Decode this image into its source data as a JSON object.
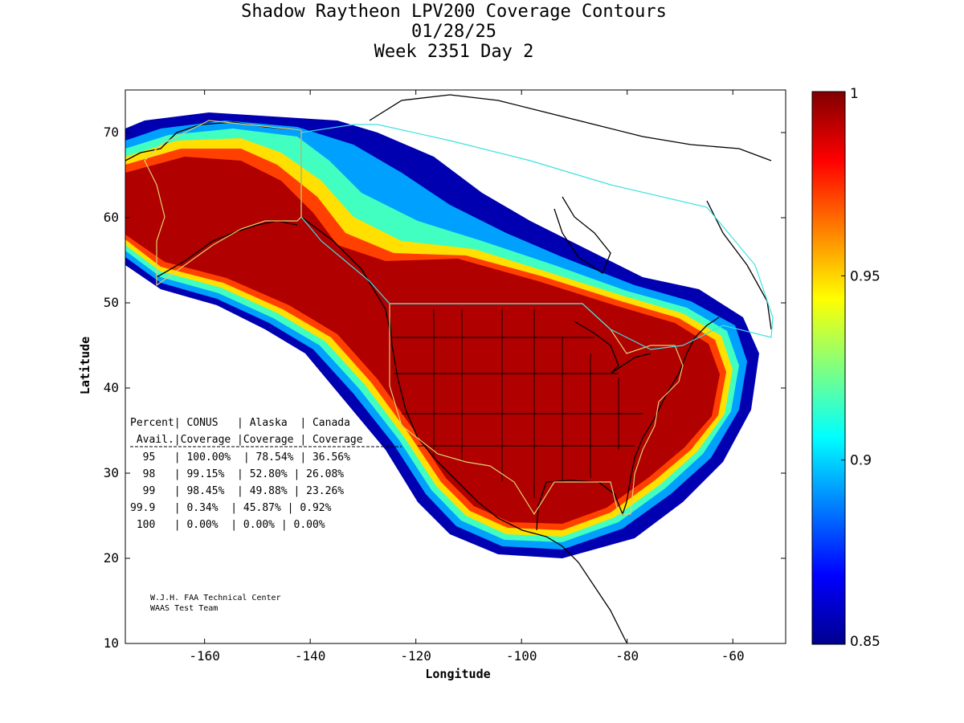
{
  "title": {
    "line1": "Shadow Raytheon LPV200 Coverage Contours",
    "line2": "01/28/25",
    "line3": "Week 2351 Day 2"
  },
  "axes": {
    "xlabel": "Longitude",
    "ylabel": "Latitude",
    "xlim": [
      -175,
      -50
    ],
    "ylim": [
      10,
      75
    ],
    "xticks": [
      -160,
      -140,
      -120,
      -100,
      -80,
      -60
    ],
    "yticks": [
      10,
      20,
      30,
      40,
      50,
      60,
      70
    ]
  },
  "colorbar": {
    "min": 0.85,
    "max": 1,
    "ticks": [
      {
        "value": 1,
        "label": "1"
      },
      {
        "value": 0.95,
        "label": "0.95"
      },
      {
        "value": 0.9,
        "label": "0.9"
      },
      {
        "value": 0.85,
        "label": "0.85"
      }
    ],
    "colormap": "jet"
  },
  "table": {
    "header1": "Percent| CONUS   | Alaska  | Canada",
    "header2": " Avail.|Coverage |Coverage | Coverage",
    "rows": [
      "  95   | 100.00%  | 78.54% | 36.56%",
      "  98   | 99.15%  | 52.80% | 26.08%",
      "  99   | 98.45%  | 49.88% | 23.26%",
      "99.9   | 0.34%  | 45.87% | 0.92%",
      " 100   | 0.00%  | 0.00% | 0.00%"
    ]
  },
  "credit": {
    "line1": "W.J.H. FAA Technical Center",
    "line2": "WAAS Test Team"
  },
  "colors": {
    "core": "#b00000",
    "fringe": "#0000a0",
    "coast": "#000000",
    "conus_boundary": "#e0d070",
    "canada_boundary": "#40e0e0"
  }
}
